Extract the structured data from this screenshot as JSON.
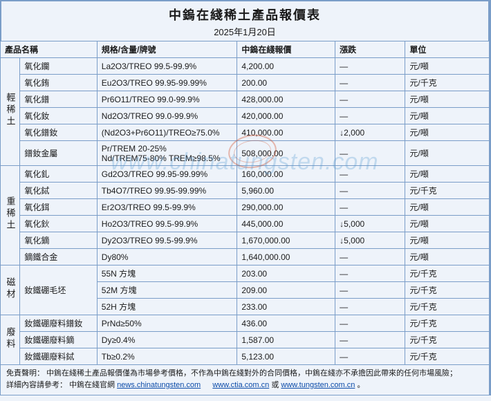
{
  "title": "中鎢在綫稀土產品報價表",
  "date": "2025年1月20日",
  "columns": {
    "name": "產品名稱",
    "spec": "規格/含量/牌號",
    "price": "中鎢在綫報價",
    "change": "漲跌",
    "unit": "單位"
  },
  "groups": [
    {
      "category": "輕稀土",
      "rows": [
        {
          "name": "氧化鑭",
          "spec": "La2O3/TREO 99.5-99.9%",
          "price": "4,200.00",
          "change": "—",
          "unit": "元/噸"
        },
        {
          "name": "氧化銪",
          "spec": "Eu2O3/TREO 99.95-99.99%",
          "price": "200.00",
          "change": "—",
          "unit": "元/千克"
        },
        {
          "name": "氧化鐠",
          "spec": "Pr6O11/TREO 99.0-99.9%",
          "price": "428,000.00",
          "change": "—",
          "unit": "元/噸"
        },
        {
          "name": "氧化釹",
          "spec": "Nd2O3/TREO 99.0-99.9%",
          "price": "420,000.00",
          "change": "—",
          "unit": "元/噸"
        },
        {
          "name": "氧化鐠釹",
          "spec": "(Nd2O3+Pr6O11)/TREO≥75.0%",
          "price": "410,000.00",
          "change": "↓2,000",
          "unit": "元/噸"
        },
        {
          "name": "鐠釹金屬",
          "spec": "Pr/TREM 20-25%\nNd/TREM75-80% TREM≥98.5%",
          "price": "508,000.00",
          "change": "—",
          "unit": "元/噸"
        }
      ]
    },
    {
      "category": "重稀土",
      "rows": [
        {
          "name": "氧化釓",
          "spec": "Gd2O3/TREO 99.95-99.99%",
          "price": "160,000.00",
          "change": "—",
          "unit": "元/噸"
        },
        {
          "name": "氧化鋱",
          "spec": "Tb4O7/TREO 99.95-99.99%",
          "price": "5,960.00",
          "change": "—",
          "unit": "元/千克"
        },
        {
          "name": "氧化鉺",
          "spec": "Er2O3/TREO 99.5-99.9%",
          "price": "290,000.00",
          "change": "—",
          "unit": "元/噸"
        },
        {
          "name": "氧化鈥",
          "spec": "Ho2O3/TREO 99.5-99.9%",
          "price": "445,000.00",
          "change": "↓5,000",
          "unit": "元/噸"
        },
        {
          "name": "氧化鏑",
          "spec": "Dy2O3/TREO 99.5-99.9%",
          "price": "1,670,000.00",
          "change": "↓5,000",
          "unit": "元/噸"
        },
        {
          "name": "鏑鐵合金",
          "spec": "Dy80%",
          "price": "1,640,000.00",
          "change": "—",
          "unit": "元/噸"
        }
      ]
    },
    {
      "category": "磁材",
      "rows": [
        {
          "name": "釹鐵硼毛坯",
          "name_rowspan": 3,
          "spec": "55N 方塊",
          "price": "203.00",
          "change": "—",
          "unit": "元/千克"
        },
        {
          "spec": "52M 方塊",
          "price": "209.00",
          "change": "—",
          "unit": "元/千克"
        },
        {
          "spec": "52H 方塊",
          "price": "233.00",
          "change": "—",
          "unit": "元/千克"
        }
      ]
    },
    {
      "category": "廢料",
      "rows": [
        {
          "name": "釹鐵硼廢料鐠釹",
          "spec": "PrNd≥50%",
          "price": "436.00",
          "change": "—",
          "unit": "元/千克"
        },
        {
          "name": "釹鐵硼廢料鏑",
          "spec": "Dy≥0.4%",
          "price": "1,587.00",
          "change": "—",
          "unit": "元/千克"
        },
        {
          "name": "釹鐵硼廢料鋱",
          "spec": "Tb≥0.2%",
          "price": "5,123.00",
          "change": "—",
          "unit": "元/千克"
        }
      ]
    }
  ],
  "footer": {
    "disclaimer_label": "免責聲明：",
    "disclaimer_text": "中鎢在綫稀土產品報價僅為市場參考價格，不作為中鎢在綫對外的合同價格，中鎢在綫亦不承擔因此帶來的任何市場風險；",
    "ref_label": "詳細內容請參考：",
    "ref_text": "中鎢在綫官網 ",
    "link1": "news.chinatungsten.com",
    "sep1": "　",
    "link2": "www.ctia.com.cn",
    "sep2": " 或 ",
    "link3": "www.tungsten.com.cn",
    "tail": "。"
  },
  "watermark": "www.chinatungsten.com",
  "colors": {
    "border": "#7a9dc8",
    "bg": "#eef3fa",
    "link": "#0a4aa8",
    "wm": "rgba(80,150,210,0.28)"
  }
}
